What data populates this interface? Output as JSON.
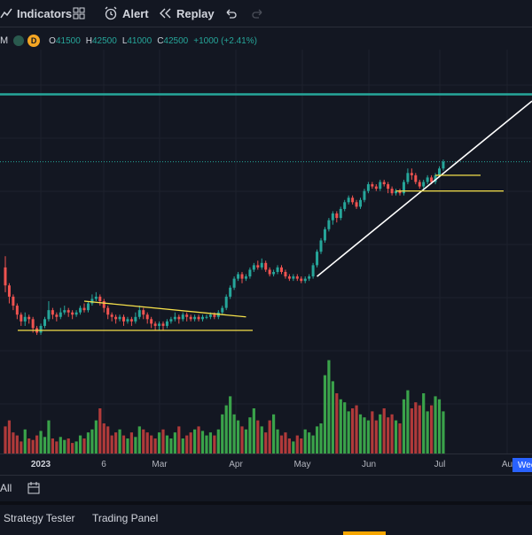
{
  "toolbar": {
    "indicators_label": "Indicators",
    "alert_label": "Alert",
    "replay_label": "Replay"
  },
  "legend": {
    "interval": "D",
    "open_label": "O",
    "open": "41500",
    "high_label": "H",
    "high": "42500",
    "low_label": "L",
    "low": "41000",
    "close_label": "C",
    "close": "42500",
    "change": "+1000 (+2.41%)"
  },
  "xaxis": {
    "labels": [
      "2023",
      "6",
      "Mar",
      "Apr",
      "May",
      "Jun",
      "Jul",
      "Au"
    ],
    "active_badge": "Wee"
  },
  "bottom": {
    "all_label": "All"
  },
  "panel_tabs": {
    "strategy_tester": "Strategy Tester",
    "trading_panel": "Trading Panel"
  },
  "colors": {
    "up": "#26a69a",
    "down": "#ef5350",
    "vol_up": "#3aa34a",
    "vol_down": "#b03a3a",
    "trendline": "#ffffff",
    "support": "#f5e04a",
    "level": "#26a69a"
  },
  "chart_data": {
    "type": "candlestick",
    "xlabel": "",
    "ylabel": "",
    "candles": [
      {
        "o": 41,
        "c": 33,
        "h": 46,
        "l": 30
      },
      {
        "o": 33,
        "c": 28,
        "h": 34,
        "l": 25
      },
      {
        "o": 28,
        "c": 24,
        "h": 29,
        "l": 22
      },
      {
        "o": 24,
        "c": 20,
        "h": 25,
        "l": 18
      },
      {
        "o": 20,
        "c": 17,
        "h": 21,
        "l": 15
      },
      {
        "o": 17,
        "c": 19,
        "h": 21,
        "l": 15
      },
      {
        "o": 19,
        "c": 18,
        "h": 20,
        "l": 16
      },
      {
        "o": 18,
        "c": 14,
        "h": 19,
        "l": 12
      },
      {
        "o": 14,
        "c": 12,
        "h": 15,
        "l": 11
      },
      {
        "o": 12,
        "c": 15,
        "h": 16,
        "l": 11
      },
      {
        "o": 15,
        "c": 18,
        "h": 19,
        "l": 14
      },
      {
        "o": 18,
        "c": 22,
        "h": 26,
        "l": 17
      },
      {
        "o": 22,
        "c": 20,
        "h": 23,
        "l": 18
      },
      {
        "o": 20,
        "c": 19,
        "h": 21,
        "l": 17
      },
      {
        "o": 19,
        "c": 21,
        "h": 23,
        "l": 18
      },
      {
        "o": 21,
        "c": 22,
        "h": 24,
        "l": 20
      },
      {
        "o": 22,
        "c": 21,
        "h": 23,
        "l": 19
      },
      {
        "o": 21,
        "c": 20,
        "h": 22,
        "l": 18
      },
      {
        "o": 20,
        "c": 21,
        "h": 22,
        "l": 19
      },
      {
        "o": 21,
        "c": 23,
        "h": 24,
        "l": 20
      },
      {
        "o": 23,
        "c": 22,
        "h": 25,
        "l": 21
      },
      {
        "o": 22,
        "c": 25,
        "h": 26,
        "l": 21
      },
      {
        "o": 25,
        "c": 27,
        "h": 29,
        "l": 24
      },
      {
        "o": 27,
        "c": 28,
        "h": 30,
        "l": 26
      },
      {
        "o": 28,
        "c": 26,
        "h": 29,
        "l": 24
      },
      {
        "o": 26,
        "c": 23,
        "h": 27,
        "l": 21
      },
      {
        "o": 23,
        "c": 20,
        "h": 24,
        "l": 18
      },
      {
        "o": 20,
        "c": 19,
        "h": 21,
        "l": 17
      },
      {
        "o": 19,
        "c": 18,
        "h": 20,
        "l": 16
      },
      {
        "o": 18,
        "c": 19,
        "h": 20,
        "l": 17
      },
      {
        "o": 19,
        "c": 17,
        "h": 20,
        "l": 15
      },
      {
        "o": 17,
        "c": 18,
        "h": 19,
        "l": 16
      },
      {
        "o": 18,
        "c": 17,
        "h": 19,
        "l": 15
      },
      {
        "o": 17,
        "c": 19,
        "h": 21,
        "l": 16
      },
      {
        "o": 19,
        "c": 22,
        "h": 24,
        "l": 18
      },
      {
        "o": 22,
        "c": 20,
        "h": 23,
        "l": 18
      },
      {
        "o": 20,
        "c": 18,
        "h": 21,
        "l": 16
      },
      {
        "o": 18,
        "c": 16,
        "h": 19,
        "l": 14
      },
      {
        "o": 16,
        "c": 15,
        "h": 17,
        "l": 13
      },
      {
        "o": 15,
        "c": 16,
        "h": 17,
        "l": 13
      },
      {
        "o": 16,
        "c": 15,
        "h": 17,
        "l": 13
      },
      {
        "o": 15,
        "c": 17,
        "h": 18,
        "l": 14
      },
      {
        "o": 17,
        "c": 18,
        "h": 19,
        "l": 16
      },
      {
        "o": 18,
        "c": 19,
        "h": 21,
        "l": 17
      },
      {
        "o": 19,
        "c": 18,
        "h": 20,
        "l": 16
      },
      {
        "o": 18,
        "c": 20,
        "h": 21,
        "l": 17
      },
      {
        "o": 20,
        "c": 19,
        "h": 21,
        "l": 17
      },
      {
        "o": 19,
        "c": 18,
        "h": 20,
        "l": 17
      },
      {
        "o": 18,
        "c": 19,
        "h": 20,
        "l": 17
      },
      {
        "o": 19,
        "c": 18,
        "h": 20,
        "l": 17
      },
      {
        "o": 18,
        "c": 19,
        "h": 20,
        "l": 17
      },
      {
        "o": 19,
        "c": 19,
        "h": 20,
        "l": 18
      },
      {
        "o": 19,
        "c": 20,
        "h": 21,
        "l": 18
      },
      {
        "o": 20,
        "c": 19,
        "h": 21,
        "l": 18
      },
      {
        "o": 19,
        "c": 21,
        "h": 22,
        "l": 18
      },
      {
        "o": 21,
        "c": 23,
        "h": 24,
        "l": 20
      },
      {
        "o": 23,
        "c": 28,
        "h": 29,
        "l": 22
      },
      {
        "o": 28,
        "c": 32,
        "h": 33,
        "l": 27
      },
      {
        "o": 32,
        "c": 36,
        "h": 37,
        "l": 31
      },
      {
        "o": 36,
        "c": 38,
        "h": 39,
        "l": 35
      },
      {
        "o": 38,
        "c": 36,
        "h": 39,
        "l": 34
      },
      {
        "o": 36,
        "c": 37,
        "h": 38,
        "l": 35
      },
      {
        "o": 37,
        "c": 40,
        "h": 41,
        "l": 36
      },
      {
        "o": 40,
        "c": 42,
        "h": 43,
        "l": 39
      },
      {
        "o": 42,
        "c": 41,
        "h": 44,
        "l": 40
      },
      {
        "o": 41,
        "c": 43,
        "h": 45,
        "l": 40
      },
      {
        "o": 43,
        "c": 40,
        "h": 44,
        "l": 39
      },
      {
        "o": 40,
        "c": 38,
        "h": 41,
        "l": 37
      },
      {
        "o": 38,
        "c": 39,
        "h": 40,
        "l": 37
      },
      {
        "o": 39,
        "c": 41,
        "h": 42,
        "l": 38
      },
      {
        "o": 41,
        "c": 39,
        "h": 42,
        "l": 38
      },
      {
        "o": 39,
        "c": 37,
        "h": 40,
        "l": 36
      },
      {
        "o": 37,
        "c": 36,
        "h": 38,
        "l": 35
      },
      {
        "o": 36,
        "c": 37,
        "h": 38,
        "l": 35
      },
      {
        "o": 37,
        "c": 36,
        "h": 38,
        "l": 35
      },
      {
        "o": 36,
        "c": 35,
        "h": 37,
        "l": 34
      },
      {
        "o": 35,
        "c": 36,
        "h": 37,
        "l": 34
      },
      {
        "o": 36,
        "c": 37,
        "h": 38,
        "l": 35
      },
      {
        "o": 37,
        "c": 42,
        "h": 43,
        "l": 36
      },
      {
        "o": 42,
        "c": 48,
        "h": 49,
        "l": 41
      },
      {
        "o": 48,
        "c": 53,
        "h": 54,
        "l": 47
      },
      {
        "o": 53,
        "c": 58,
        "h": 59,
        "l": 52
      },
      {
        "o": 58,
        "c": 62,
        "h": 63,
        "l": 57
      },
      {
        "o": 62,
        "c": 65,
        "h": 66,
        "l": 60
      },
      {
        "o": 65,
        "c": 63,
        "h": 66,
        "l": 61
      },
      {
        "o": 63,
        "c": 67,
        "h": 68,
        "l": 62
      },
      {
        "o": 67,
        "c": 70,
        "h": 71,
        "l": 66
      },
      {
        "o": 70,
        "c": 72,
        "h": 73,
        "l": 69
      },
      {
        "o": 72,
        "c": 70,
        "h": 73,
        "l": 69
      },
      {
        "o": 70,
        "c": 68,
        "h": 71,
        "l": 67
      },
      {
        "o": 68,
        "c": 71,
        "h": 72,
        "l": 67
      },
      {
        "o": 71,
        "c": 75,
        "h": 76,
        "l": 70
      },
      {
        "o": 75,
        "c": 78,
        "h": 79,
        "l": 74
      },
      {
        "o": 78,
        "c": 77,
        "h": 79,
        "l": 76
      },
      {
        "o": 77,
        "c": 76,
        "h": 78,
        "l": 75
      },
      {
        "o": 76,
        "c": 79,
        "h": 80,
        "l": 75
      },
      {
        "o": 79,
        "c": 78,
        "h": 80,
        "l": 77
      },
      {
        "o": 78,
        "c": 76,
        "h": 79,
        "l": 74
      },
      {
        "o": 76,
        "c": 74,
        "h": 77,
        "l": 73
      },
      {
        "o": 74,
        "c": 75,
        "h": 76,
        "l": 73
      },
      {
        "o": 75,
        "c": 74,
        "h": 76,
        "l": 73
      },
      {
        "o": 74,
        "c": 79,
        "h": 80,
        "l": 73
      },
      {
        "o": 79,
        "c": 83,
        "h": 85,
        "l": 78
      },
      {
        "o": 83,
        "c": 82,
        "h": 85,
        "l": 80
      },
      {
        "o": 82,
        "c": 79,
        "h": 83,
        "l": 78
      },
      {
        "o": 79,
        "c": 77,
        "h": 80,
        "l": 76
      },
      {
        "o": 77,
        "c": 79,
        "h": 80,
        "l": 76
      },
      {
        "o": 79,
        "c": 81,
        "h": 82,
        "l": 78
      },
      {
        "o": 81,
        "c": 79,
        "h": 82,
        "l": 78
      },
      {
        "o": 79,
        "c": 82,
        "h": 83,
        "l": 78
      },
      {
        "o": 82,
        "c": 85,
        "h": 86,
        "l": 81
      },
      {
        "o": 85,
        "c": 88,
        "h": 89,
        "l": 84
      }
    ],
    "volumes": [
      18,
      22,
      14,
      12,
      8,
      16,
      10,
      9,
      12,
      15,
      11,
      22,
      10,
      8,
      11,
      9,
      10,
      7,
      8,
      12,
      10,
      14,
      16,
      22,
      30,
      20,
      18,
      12,
      14,
      16,
      12,
      10,
      14,
      11,
      18,
      16,
      14,
      12,
      10,
      14,
      16,
      12,
      10,
      14,
      18,
      10,
      12,
      14,
      16,
      18,
      15,
      12,
      14,
      12,
      16,
      26,
      32,
      38,
      26,
      22,
      18,
      16,
      24,
      30,
      22,
      18,
      14,
      22,
      26,
      16,
      12,
      14,
      10,
      8,
      12,
      10,
      16,
      14,
      12,
      18,
      20,
      52,
      62,
      48,
      40,
      36,
      34,
      28,
      30,
      32,
      26,
      24,
      22,
      28,
      22,
      26,
      30,
      24,
      26,
      22,
      20,
      36,
      42,
      30,
      34,
      32,
      40,
      28,
      32,
      38,
      36,
      28
    ],
    "drawings": {
      "support_y": 13,
      "upper_level_y": 118,
      "dotted_level_y": 88
    }
  }
}
